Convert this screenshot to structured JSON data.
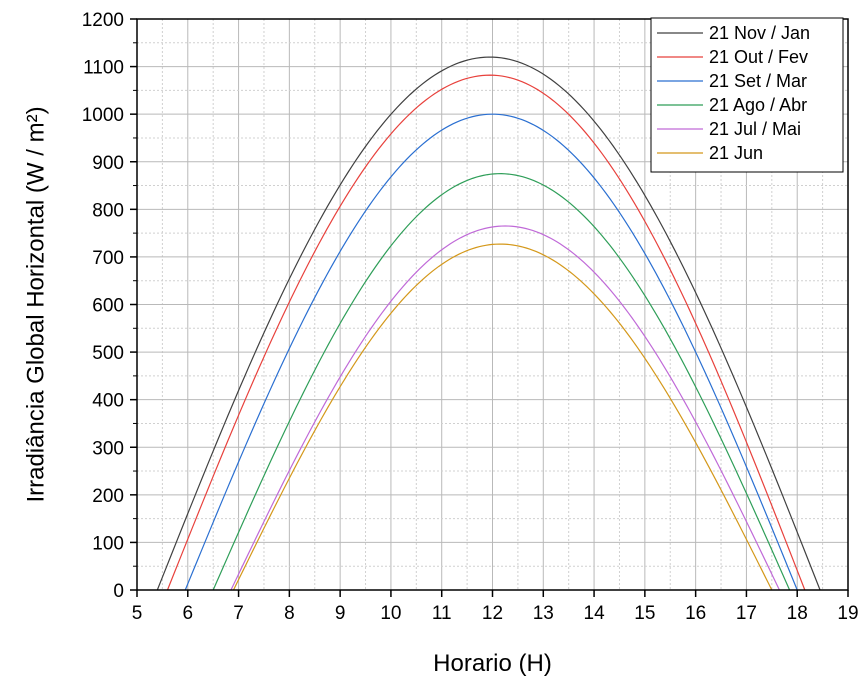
{
  "chart_data": {
    "type": "line",
    "title": "",
    "xlabel": "Horario (H)",
    "ylabel": "Irradiância Global Horizontal (W / m²)",
    "xlim": [
      5,
      19
    ],
    "ylim": [
      0,
      1200
    ],
    "x_ticks": [
      5,
      6,
      7,
      8,
      9,
      10,
      11,
      12,
      13,
      14,
      15,
      16,
      17,
      18,
      19
    ],
    "y_ticks": [
      0,
      100,
      200,
      300,
      400,
      500,
      600,
      700,
      800,
      900,
      1000,
      1100,
      1200
    ],
    "grid": true,
    "legend_position": "top-right",
    "series": [
      {
        "name": "21 Nov / Jan",
        "color": "#404040",
        "sunrise": 5.4,
        "sunset": 18.45,
        "peak_time": 11.95,
        "peak_value": 1120,
        "x": [
          5.4,
          6,
          7,
          8,
          9,
          10,
          11,
          12,
          13,
          14,
          15,
          16,
          17,
          18,
          18.45
        ],
        "y": [
          0,
          135,
          390,
          625,
          830,
          990,
          1090,
          1120,
          1080,
          970,
          800,
          575,
          330,
          75,
          0
        ]
      },
      {
        "name": "21 Out / Fev",
        "color": "#e8413c",
        "sunrise": 5.6,
        "sunset": 18.15,
        "peak_time": 11.95,
        "peak_value": 1082,
        "x": [
          5.6,
          6,
          7,
          8,
          9,
          10,
          11,
          12,
          13,
          14,
          15,
          16,
          17,
          18,
          18.15
        ],
        "y": [
          0,
          80,
          330,
          575,
          790,
          955,
          1055,
          1082,
          1040,
          930,
          755,
          530,
          270,
          20,
          0
        ]
      },
      {
        "name": "21 Set / Mar",
        "color": "#2a6fd1",
        "sunrise": 5.95,
        "sunset": 18.0,
        "peak_time": 12.0,
        "peak_value": 1000,
        "x": [
          5.95,
          6,
          7,
          8,
          9,
          10,
          11,
          12,
          13,
          14,
          15,
          16,
          17,
          17.5,
          18.0
        ],
        "y": [
          0,
          10,
          215,
          470,
          690,
          865,
          970,
          1000,
          960,
          850,
          685,
          470,
          215,
          100,
          0
        ]
      },
      {
        "name": "21 Ago / Abr",
        "color": "#2e9e58",
        "sunrise": 6.5,
        "sunset": 17.85,
        "peak_time": 12.15,
        "peak_value": 875,
        "x": [
          6.5,
          7,
          8,
          9,
          10,
          11,
          12,
          13,
          14,
          15,
          16,
          17,
          17.85
        ],
        "y": [
          0,
          95,
          340,
          560,
          730,
          840,
          875,
          845,
          745,
          590,
          390,
          160,
          0
        ]
      },
      {
        "name": "21 Jul / Mai",
        "color": "#c06ad8",
        "sunrise": 6.85,
        "sunset": 17.65,
        "peak_time": 12.25,
        "peak_value": 765,
        "x": [
          6.85,
          7,
          8,
          9,
          10,
          11,
          12,
          13,
          14,
          15,
          16,
          17,
          17.65
        ],
        "y": [
          0,
          15,
          245,
          455,
          620,
          720,
          760,
          735,
          640,
          480,
          290,
          95,
          0
        ]
      },
      {
        "name": "21 Jun",
        "color": "#d4981a",
        "sunrise": 6.9,
        "sunset": 17.5,
        "peak_time": 12.15,
        "peak_value": 727,
        "x": [
          6.9,
          7,
          8,
          9,
          10,
          11,
          12,
          13,
          14,
          15,
          16,
          17,
          17.5
        ],
        "y": [
          0,
          10,
          235,
          430,
          590,
          690,
          725,
          700,
          605,
          460,
          270,
          75,
          0
        ]
      }
    ]
  }
}
